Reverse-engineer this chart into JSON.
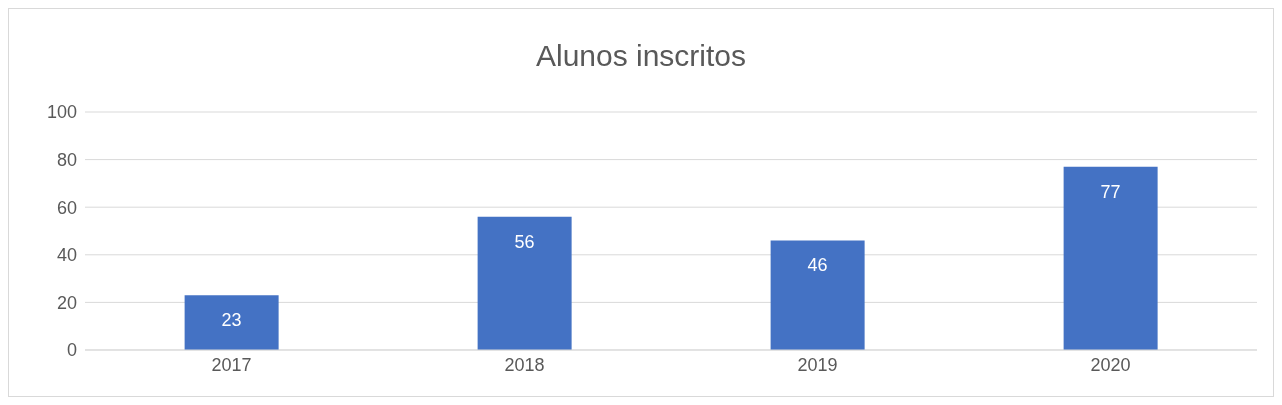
{
  "chart_data": {
    "type": "bar",
    "title": "Alunos inscritos",
    "categories": [
      "2017",
      "2018",
      "2019",
      "2020"
    ],
    "values": [
      23,
      56,
      46,
      77
    ],
    "color": "#4472c4",
    "ylim": [
      0,
      100
    ],
    "yticks": [
      0,
      20,
      40,
      60,
      80,
      100
    ],
    "grid": "y",
    "data_labels": true
  }
}
